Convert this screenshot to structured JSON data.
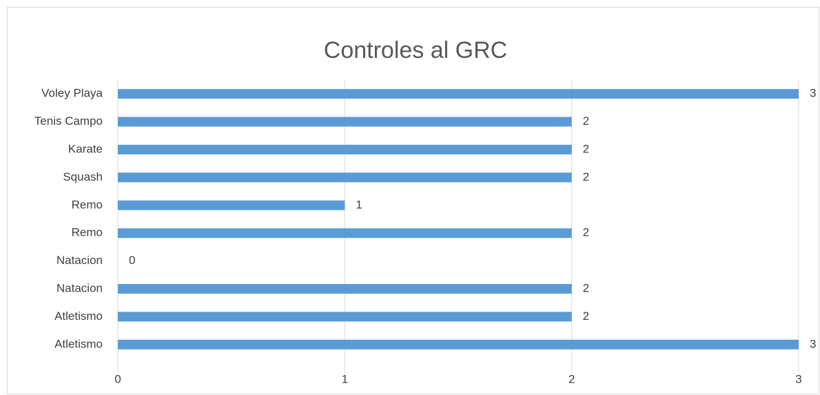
{
  "chart_data": {
    "type": "barh",
    "title": "Controles al GRC",
    "categories": [
      "Atletismo",
      "Atletismo",
      "Natacion",
      "Natacion",
      "Remo",
      "Remo",
      "Squash",
      "Karate",
      "Tenis Campo",
      "Voley Playa"
    ],
    "values": [
      3,
      2,
      2,
      0,
      2,
      1,
      2,
      2,
      2,
      3
    ],
    "color": "#5b9bd5",
    "xlim": [
      0,
      3
    ],
    "xticks": [
      0,
      1,
      2,
      3
    ],
    "grid": true
  }
}
